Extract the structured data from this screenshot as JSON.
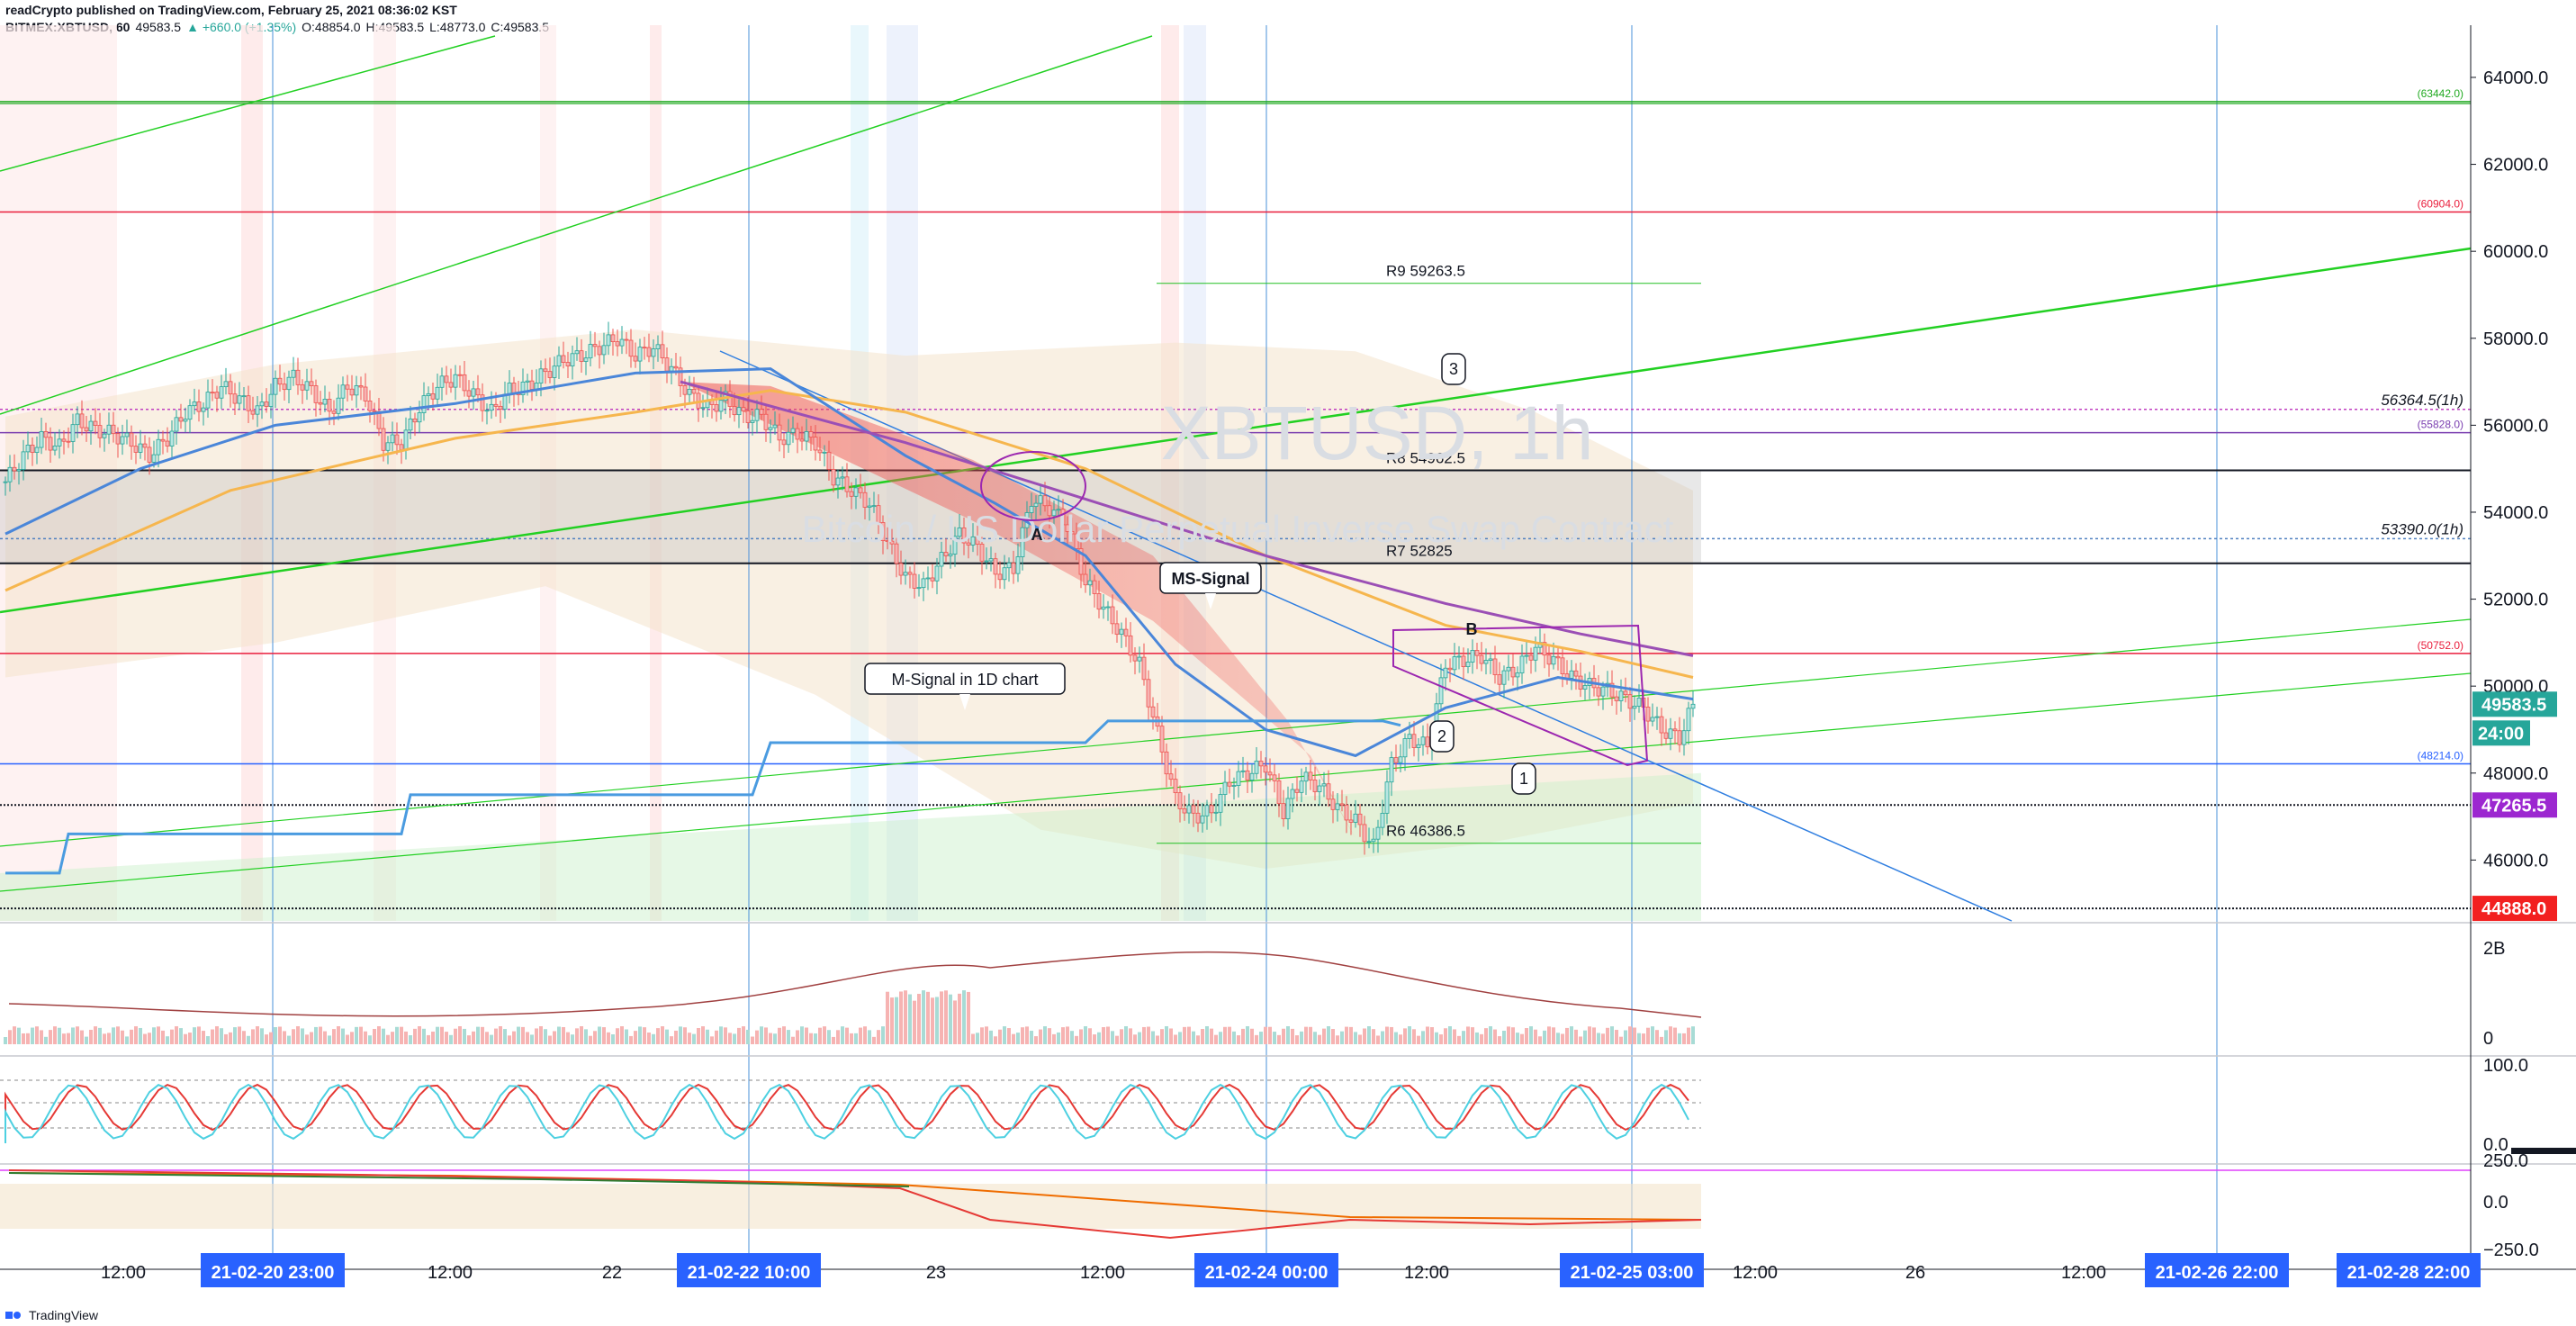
{
  "header": {
    "publisher": "readCrypto published on TradingView.com, February 25, 2021 08:36:02 KST",
    "symbol": "BITMEX:XBTUSD, 60",
    "last": "49583.5",
    "change": "▲ +660.0 (+1.35%)",
    "o": "O:48854.0",
    "h": "H:49583.5",
    "l": "L:48773.0",
    "c": "C:49583.5"
  },
  "watermark": {
    "symbol": "XBTUSD, 1h",
    "description": "Bitcoin / US Dollar Perpetual Inverse Swap Contract"
  },
  "footer": {
    "brand": "TradingView"
  },
  "colors": {
    "up": "#26a69a",
    "down": "#ef5350",
    "accent": "#2962ff",
    "msignal": "#4a9be0",
    "ema_slow": "#f6b64e",
    "purple": "#9b4fb5",
    "green_line": "#22d022",
    "red_line": "#e91e3c"
  },
  "chart_data": {
    "type": "line",
    "title": "XBTUSD, 1h",
    "price_axis": {
      "ticks": [
        "64000.0",
        "62000.0",
        "60000.0",
        "58000.0",
        "56000.0",
        "54000.0",
        "52000.0",
        "50000.0",
        "48000.0",
        "46000.0"
      ],
      "ylim": [
        44600,
        65200
      ]
    },
    "time_axis": {
      "ticks": [
        "12:00",
        "21-02-20   23:00",
        "12:00",
        "22",
        "21-02-22   10:00",
        "23",
        "12:00",
        "21-02-24   00:00",
        "12:00",
        "21-02-25   03:00",
        "12:00",
        "26",
        "12:00",
        "21-02-26   22:00",
        "21-02-28   22:00"
      ]
    },
    "price_tags": {
      "last": "49583.5",
      "countdown": "24:00",
      "purple": "47265.5",
      "red": "44888.0"
    },
    "levels": [
      {
        "name": "R9",
        "label": "R9 59263.5",
        "value": 59263.5
      },
      {
        "name": "R8",
        "label": "R8 54962.5",
        "value": 54962.5
      },
      {
        "name": "R7",
        "label": "R7 52825",
        "value": 52825
      },
      {
        "name": "R6",
        "label": "R6 46386.5",
        "value": 46386.5
      }
    ],
    "horizontal_lines": [
      {
        "label": "(63442.0)",
        "value": 63442.0
      },
      {
        "label": "(60904.0)",
        "value": 60904.0
      },
      {
        "label": "56364.5(1h)",
        "value": 56364.5
      },
      {
        "label": "(55828.0)",
        "value": 55828.0
      },
      {
        "label": "53390.0(1h)",
        "value": 53390.0
      },
      {
        "label": "(50752.0)",
        "value": 50752.0
      },
      {
        "label": "(48214.0)",
        "value": 48214.0
      }
    ],
    "annotations": [
      "A",
      "B",
      "MS-Signal",
      "M-Signal in 1D chart",
      "1",
      "2",
      "3"
    ],
    "series": [
      {
        "name": "close",
        "points": [
          [
            0,
            54700
          ],
          [
            4,
            55300
          ],
          [
            8,
            55700
          ],
          [
            12,
            55500
          ],
          [
            16,
            56100
          ],
          [
            20,
            55900
          ],
          [
            24,
            55800
          ],
          [
            28,
            55600
          ],
          [
            32,
            55300
          ],
          [
            36,
            55700
          ],
          [
            40,
            56300
          ],
          [
            44,
            56500
          ],
          [
            48,
            56900
          ],
          [
            52,
            56600
          ],
          [
            56,
            56300
          ],
          [
            60,
            56900
          ],
          [
            64,
            57100
          ],
          [
            68,
            56800
          ],
          [
            72,
            56300
          ],
          [
            76,
            56900
          ],
          [
            80,
            56700
          ],
          [
            84,
            55600
          ],
          [
            88,
            55600
          ],
          [
            92,
            56400
          ],
          [
            96,
            56900
          ],
          [
            100,
            57100
          ],
          [
            104,
            56700
          ],
          [
            108,
            56300
          ],
          [
            112,
            56800
          ],
          [
            116,
            56900
          ],
          [
            120,
            57200
          ],
          [
            124,
            57500
          ],
          [
            128,
            57600
          ],
          [
            132,
            57800
          ],
          [
            136,
            58000
          ],
          [
            140,
            57600
          ],
          [
            144,
            57800
          ],
          [
            148,
            57300
          ],
          [
            152,
            56700
          ],
          [
            156,
            56400
          ],
          [
            160,
            56600
          ],
          [
            164,
            56200
          ],
          [
            168,
            56200
          ],
          [
            172,
            55700
          ],
          [
            176,
            55800
          ],
          [
            180,
            55600
          ],
          [
            184,
            54800
          ],
          [
            188,
            54500
          ],
          [
            192,
            54200
          ],
          [
            196,
            53300
          ],
          [
            200,
            52500
          ],
          [
            204,
            52300
          ],
          [
            208,
            52900
          ],
          [
            212,
            53500
          ],
          [
            216,
            53200
          ],
          [
            220,
            52600
          ],
          [
            224,
            52700
          ],
          [
            228,
            54300
          ],
          [
            232,
            54100
          ],
          [
            236,
            53700
          ],
          [
            240,
            52400
          ],
          [
            244,
            51800
          ],
          [
            248,
            51200
          ],
          [
            252,
            50500
          ],
          [
            256,
            48900
          ],
          [
            260,
            47400
          ],
          [
            264,
            47000
          ],
          [
            268,
            47100
          ],
          [
            272,
            47800
          ],
          [
            276,
            48000
          ],
          [
            280,
            48200
          ],
          [
            284,
            47100
          ],
          [
            288,
            47900
          ],
          [
            292,
            47700
          ],
          [
            296,
            47200
          ],
          [
            300,
            46900
          ],
          [
            304,
            46300
          ],
          [
            308,
            48200
          ],
          [
            312,
            48800
          ],
          [
            316,
            48600
          ],
          [
            320,
            50500
          ],
          [
            324,
            50600
          ],
          [
            328,
            50700
          ],
          [
            332,
            50200
          ],
          [
            336,
            50400
          ],
          [
            340,
            50900
          ],
          [
            344,
            50600
          ],
          [
            348,
            50200
          ],
          [
            352,
            50000
          ],
          [
            356,
            49900
          ],
          [
            360,
            49700
          ],
          [
            364,
            49500
          ],
          [
            368,
            49000
          ],
          [
            372,
            48800
          ],
          [
            375,
            49583.5
          ]
        ]
      },
      {
        "name": "M-Signal in 1D chart",
        "points": [
          [
            0,
            45700
          ],
          [
            12,
            45700
          ],
          [
            14,
            46600
          ],
          [
            88,
            46600
          ],
          [
            90,
            47500
          ],
          [
            166,
            47500
          ],
          [
            170,
            48700
          ],
          [
            240,
            48700
          ],
          [
            245,
            49200
          ],
          [
            306,
            49200
          ],
          [
            310,
            49100
          ]
        ]
      },
      {
        "name": "EMA fast",
        "points": [
          [
            0,
            53500
          ],
          [
            30,
            55000
          ],
          [
            60,
            56000
          ],
          [
            100,
            56500
          ],
          [
            140,
            57200
          ],
          [
            170,
            57300
          ],
          [
            200,
            55300
          ],
          [
            220,
            54200
          ],
          [
            240,
            53000
          ],
          [
            260,
            50500
          ],
          [
            280,
            49000
          ],
          [
            300,
            48400
          ],
          [
            320,
            49500
          ],
          [
            345,
            50200
          ],
          [
            375,
            49700
          ]
        ]
      },
      {
        "name": "EMA slow",
        "points": [
          [
            0,
            52200
          ],
          [
            50,
            54500
          ],
          [
            100,
            55700
          ],
          [
            140,
            56300
          ],
          [
            170,
            56800
          ],
          [
            200,
            56300
          ],
          [
            240,
            55000
          ],
          [
            280,
            53000
          ],
          [
            320,
            51400
          ],
          [
            350,
            50800
          ],
          [
            375,
            50200
          ]
        ]
      }
    ]
  },
  "indicators": {
    "volume": {
      "ticks": [
        "2B",
        "0"
      ]
    },
    "stoch_rsi": {
      "ticks": [
        "100.0",
        "0.0"
      ]
    },
    "obv_osc": {
      "ticks": [
        "250.0",
        "0.0",
        "−250.0"
      ]
    }
  }
}
